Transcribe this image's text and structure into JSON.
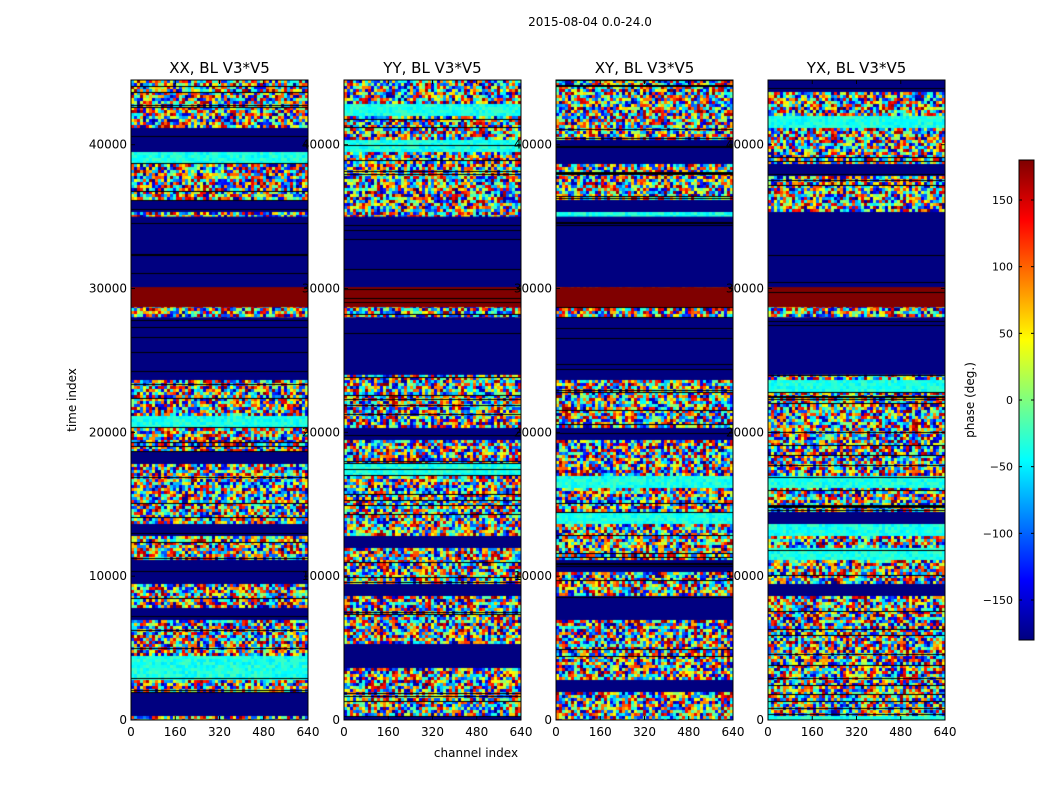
{
  "figure": {
    "suptitle": "2015-08-04 0.0-24.0",
    "xlabel": "channel index",
    "ylabel": "time index"
  },
  "chart_data": {
    "type": "heatmap",
    "title": "2015-08-04 0.0-24.0",
    "xlabel": "channel index",
    "ylabel": "time index",
    "xlim": [
      0,
      640
    ],
    "ylim": [
      0,
      44500
    ],
    "xticks": [
      0,
      160,
      320,
      480,
      640
    ],
    "yticks": [
      0,
      10000,
      20000,
      30000,
      40000
    ],
    "panels": [
      {
        "title": "XX, BL V3*V5"
      },
      {
        "title": "YY, BL V3*V5"
      },
      {
        "title": "XY, BL V3*V5"
      },
      {
        "title": "YX, BL V3*V5"
      }
    ],
    "colorbar": {
      "label": "phase (deg.)",
      "range": [
        -180,
        180
      ],
      "ticks": [
        150,
        100,
        50,
        0,
        -50,
        -100,
        -150
      ],
      "colormap": "jet"
    },
    "flagged_time_ranges": [
      {
        "from": 35000,
        "to": 30100,
        "value": -180
      },
      {
        "from": 30100,
        "to": 28700,
        "value": 180
      },
      {
        "from": 28000,
        "to": 24000,
        "value": -180
      }
    ]
  }
}
